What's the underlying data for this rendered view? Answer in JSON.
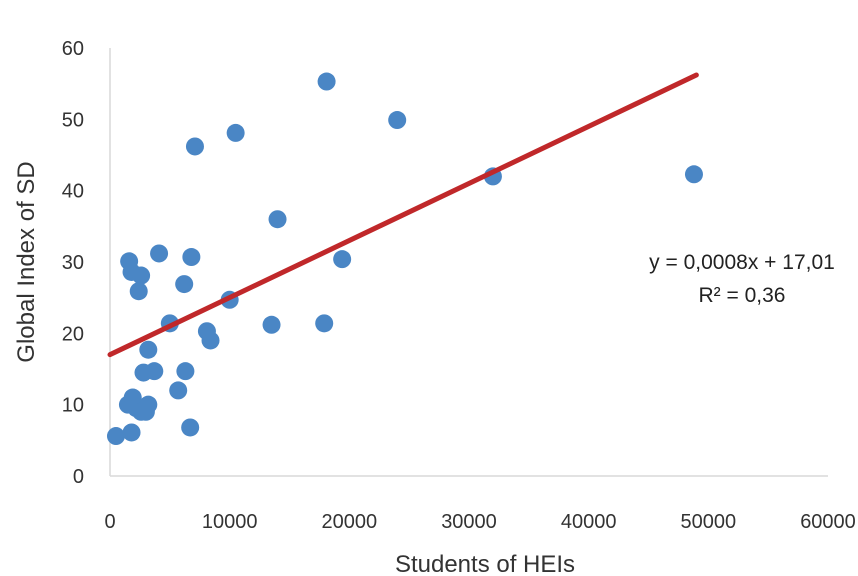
{
  "chart_data": {
    "type": "scatter",
    "title": "",
    "xlabel": "Students of HEIs",
    "ylabel": "Global Index of SD",
    "xlim": [
      0,
      60000
    ],
    "ylim": [
      0,
      60
    ],
    "x_ticks": [
      "0",
      "10000",
      "20000",
      "30000",
      "40000",
      "50000",
      "60000"
    ],
    "y_ticks": [
      "0",
      "10",
      "20",
      "30",
      "40",
      "50",
      "60"
    ],
    "grid": false,
    "legend": "none",
    "point_color": "#4a86c5",
    "trendline_color": "#c0282a",
    "series": [
      {
        "points": [
          [
            500,
            5.6
          ],
          [
            1800,
            6.1
          ],
          [
            1500,
            10.0
          ],
          [
            1900,
            11.0
          ],
          [
            2200,
            9.5
          ],
          [
            2600,
            9.0
          ],
          [
            3000,
            9.0
          ],
          [
            3200,
            10.0
          ],
          [
            2800,
            14.5
          ],
          [
            3700,
            14.7
          ],
          [
            3200,
            17.7
          ],
          [
            5000,
            21.4
          ],
          [
            5700,
            12.0
          ],
          [
            6300,
            14.7
          ],
          [
            6700,
            6.8
          ],
          [
            1600,
            30.1
          ],
          [
            1800,
            28.6
          ],
          [
            2600,
            28.1
          ],
          [
            2400,
            25.9
          ],
          [
            4100,
            31.2
          ],
          [
            6200,
            26.9
          ],
          [
            6800,
            30.7
          ],
          [
            7100,
            46.2
          ],
          [
            8100,
            20.3
          ],
          [
            8400,
            19.0
          ],
          [
            10000,
            24.7
          ],
          [
            10500,
            48.1
          ],
          [
            13500,
            21.2
          ],
          [
            14000,
            36.0
          ],
          [
            17900,
            21.4
          ],
          [
            18100,
            55.3
          ],
          [
            19400,
            30.4
          ],
          [
            24000,
            49.9
          ],
          [
            32000,
            42.0
          ],
          [
            48800,
            42.3
          ]
        ]
      }
    ],
    "trendline": {
      "slope": 0.0008,
      "intercept": 17.01,
      "x_range": [
        0,
        49000
      ],
      "equation": "y = 0,0008x + 17,01",
      "r2_label": "R² = 0,36"
    }
  }
}
